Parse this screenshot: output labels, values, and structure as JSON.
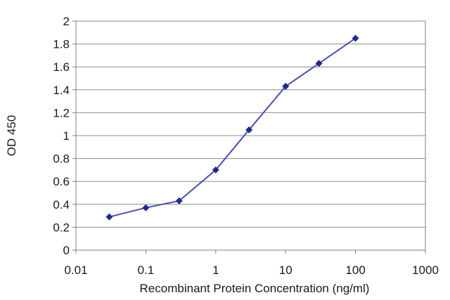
{
  "chart_data": {
    "type": "line",
    "title": "",
    "xlabel": "Recombinant Protein Concentration (ng/ml)",
    "ylabel": "OD 450",
    "x_scale": "log",
    "xlim": [
      0.01,
      1000
    ],
    "ylim": [
      0,
      2
    ],
    "x_ticks": [
      "0.01",
      "0.1",
      "1",
      "10",
      "100",
      "1000"
    ],
    "y_ticks": [
      "0",
      "0.2",
      "0.4",
      "0.6",
      "0.8",
      "1",
      "1.2",
      "1.4",
      "1.6",
      "1.8",
      "2"
    ],
    "grid": {
      "horizontal": true,
      "vertical": false
    },
    "legend": "none",
    "series": [
      {
        "x": [
          0.03,
          0.1,
          0.3,
          1,
          3,
          10,
          30,
          100
        ],
        "y": [
          0.29,
          0.37,
          0.43,
          0.7,
          1.05,
          1.43,
          1.63,
          1.85
        ],
        "color": "#4b4fb3",
        "marker_color": "#1f2b8f"
      }
    ]
  }
}
